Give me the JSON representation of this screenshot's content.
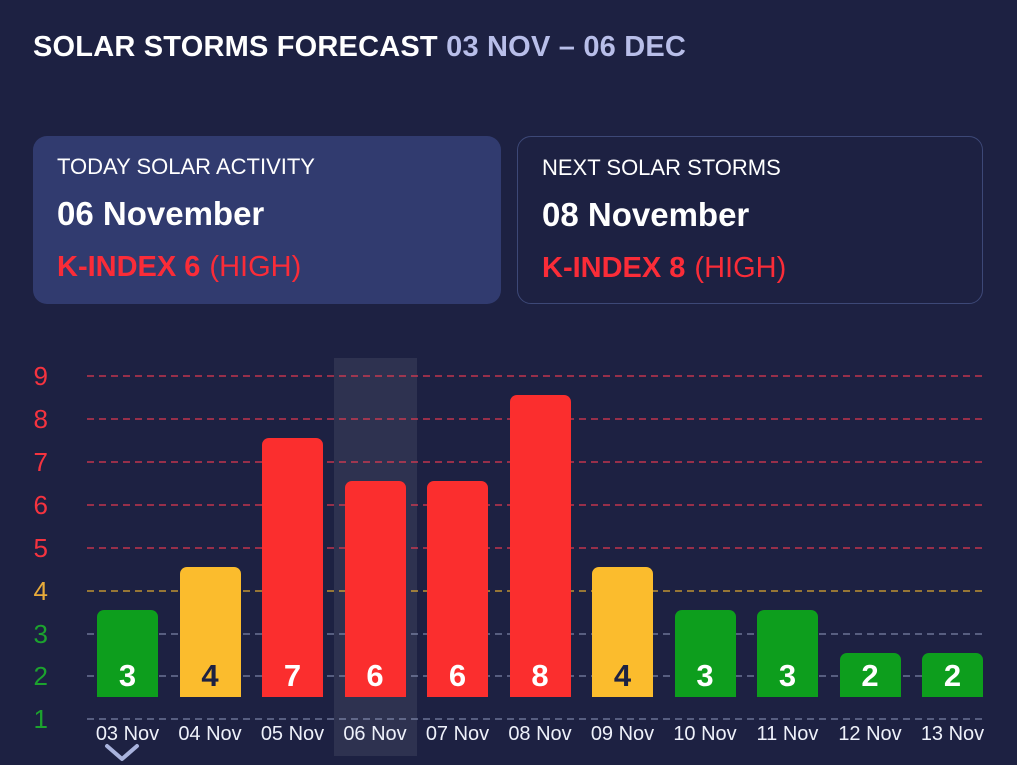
{
  "page": {
    "background": "#1d2142"
  },
  "header": {
    "title": "SOLAR STORMS FORECAST",
    "date_range": "03 NOV – 06 DEC"
  },
  "cards": {
    "today": {
      "label": "TODAY SOLAR ACTIVITY",
      "date": "06 November",
      "kindex": "K-INDEX 6",
      "severity": "(HIGH)"
    },
    "next": {
      "label": "NEXT SOLAR STORMS",
      "date": "08 November",
      "kindex": "K-INDEX 8",
      "severity": "(HIGH)"
    }
  },
  "chart_data": {
    "type": "bar",
    "title": "",
    "xlabel": "",
    "ylabel": "",
    "categories": [
      "03 Nov",
      "04 Nov",
      "05 Nov",
      "06 Nov",
      "07 Nov",
      "08 Nov",
      "09 Nov",
      "10 Nov",
      "11 Nov",
      "12 Nov",
      "13 Nov"
    ],
    "values": [
      3,
      4,
      7,
      6,
      6,
      8,
      4,
      3,
      3,
      2,
      2
    ],
    "yticks": [
      1,
      2,
      3,
      4,
      5,
      6,
      7,
      8,
      9
    ],
    "ylim": [
      1,
      9
    ],
    "grid": "horizontal-dashed",
    "legend": "none",
    "highlighted_category": "06 Nov",
    "severity_rule": {
      "green": "value <= 3",
      "yellow": "value == 4",
      "red": "value >= 5"
    },
    "colors": {
      "bar_green": "#0d9e1d",
      "bar_yellow": "#fbbc2d",
      "bar_red": "#fb2e2e",
      "tick_green": "#1ca32e",
      "tick_yellow": "#e8ab3a",
      "tick_red": "#f5333f",
      "grid_green_zone": "rgba(168,178,215,0.42)",
      "grid_yellow_zone": "rgba(250,188,45,0.55)",
      "grid_red_zone": "rgba(251,59,80,0.55)",
      "bar_label_on_yellow": "#1d2142",
      "bar_label_default": "#ffffff",
      "highlight_column": "rgba(255,255,255,0.08)"
    }
  },
  "footer": {
    "scroll_hint_icon": "chevron-down"
  },
  "accent_colors": {
    "title_range": "#b8bee9",
    "alert_red": "#fa2c38"
  }
}
